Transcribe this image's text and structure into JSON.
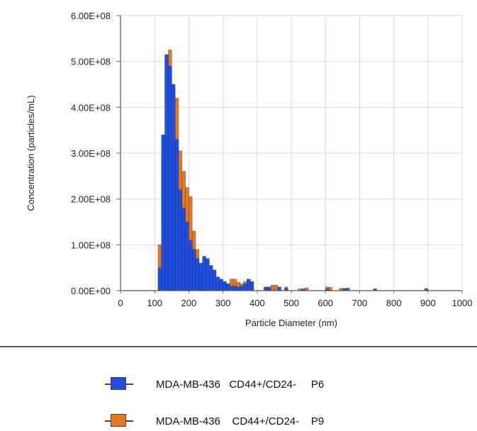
{
  "chart_data": {
    "type": "bar",
    "xlabel": "Particle Diameter (nm)",
    "ylabel": "Concentration (particles/mL)",
    "xlim": [
      0,
      1000
    ],
    "ylim": [
      0,
      600000000
    ],
    "x_ticks": [
      "0",
      "100",
      "200",
      "300",
      "400",
      "500",
      "600",
      "700",
      "800",
      "900",
      "1000"
    ],
    "y_ticks": [
      "0.00E+00",
      "1.00E+08",
      "2.00E+08",
      "3.00E+08",
      "4.00E+08",
      "5.00E+08",
      "6.00E+08"
    ],
    "bin_width": 10,
    "grid": true,
    "series": [
      {
        "name": "MDA-MB-436   CD44+/CD24-     P6",
        "color": "#1f4fe0",
        "points": [
          [
            115,
            50000000
          ],
          [
            125,
            340000000
          ],
          [
            135,
            515000000
          ],
          [
            145,
            490000000
          ],
          [
            155,
            450000000
          ],
          [
            165,
            330000000
          ],
          [
            175,
            220000000
          ],
          [
            185,
            180000000
          ],
          [
            195,
            150000000
          ],
          [
            205,
            110000000
          ],
          [
            215,
            90000000
          ],
          [
            225,
            70000000
          ],
          [
            235,
            60000000
          ],
          [
            245,
            75000000
          ],
          [
            255,
            70000000
          ],
          [
            265,
            55000000
          ],
          [
            275,
            45000000
          ],
          [
            285,
            30000000
          ],
          [
            295,
            25000000
          ],
          [
            305,
            20000000
          ],
          [
            315,
            15000000
          ],
          [
            325,
            10000000
          ],
          [
            335,
            10000000
          ],
          [
            345,
            8000000
          ],
          [
            355,
            10000000
          ],
          [
            365,
            15000000
          ],
          [
            375,
            25000000
          ],
          [
            385,
            20000000
          ],
          [
            425,
            8000000
          ],
          [
            435,
            8000000
          ],
          [
            465,
            8000000
          ],
          [
            485,
            5000000
          ],
          [
            535,
            4000000
          ],
          [
            605,
            4000000
          ],
          [
            655,
            5000000
          ],
          [
            665,
            4000000
          ],
          [
            745,
            4000000
          ],
          [
            895,
            3000000
          ]
        ]
      },
      {
        "name": "MDA-MB-436    CD44+/CD24-    P9",
        "color": "#e8781e",
        "points": [
          [
            115,
            100000000
          ],
          [
            125,
            290000000
          ],
          [
            135,
            510000000
          ],
          [
            145,
            525000000
          ],
          [
            155,
            440000000
          ],
          [
            165,
            420000000
          ],
          [
            175,
            305000000
          ],
          [
            185,
            260000000
          ],
          [
            195,
            225000000
          ],
          [
            205,
            205000000
          ],
          [
            215,
            130000000
          ],
          [
            225,
            90000000
          ],
          [
            235,
            50000000
          ],
          [
            245,
            45000000
          ],
          [
            255,
            40000000
          ],
          [
            265,
            40000000
          ],
          [
            275,
            40000000
          ],
          [
            285,
            20000000
          ],
          [
            295,
            25000000
          ],
          [
            305,
            15000000
          ],
          [
            315,
            15000000
          ],
          [
            325,
            25000000
          ],
          [
            335,
            25000000
          ],
          [
            345,
            18000000
          ],
          [
            355,
            15000000
          ],
          [
            365,
            20000000
          ],
          [
            375,
            25000000
          ],
          [
            385,
            8000000
          ],
          [
            435,
            5000000
          ],
          [
            445,
            12000000
          ],
          [
            455,
            12000000
          ],
          [
            485,
            8000000
          ],
          [
            525,
            4000000
          ],
          [
            545,
            6000000
          ],
          [
            605,
            8000000
          ],
          [
            615,
            7000000
          ],
          [
            645,
            5000000
          ],
          [
            665,
            6000000
          ],
          [
            895,
            5000000
          ]
        ]
      }
    ]
  }
}
